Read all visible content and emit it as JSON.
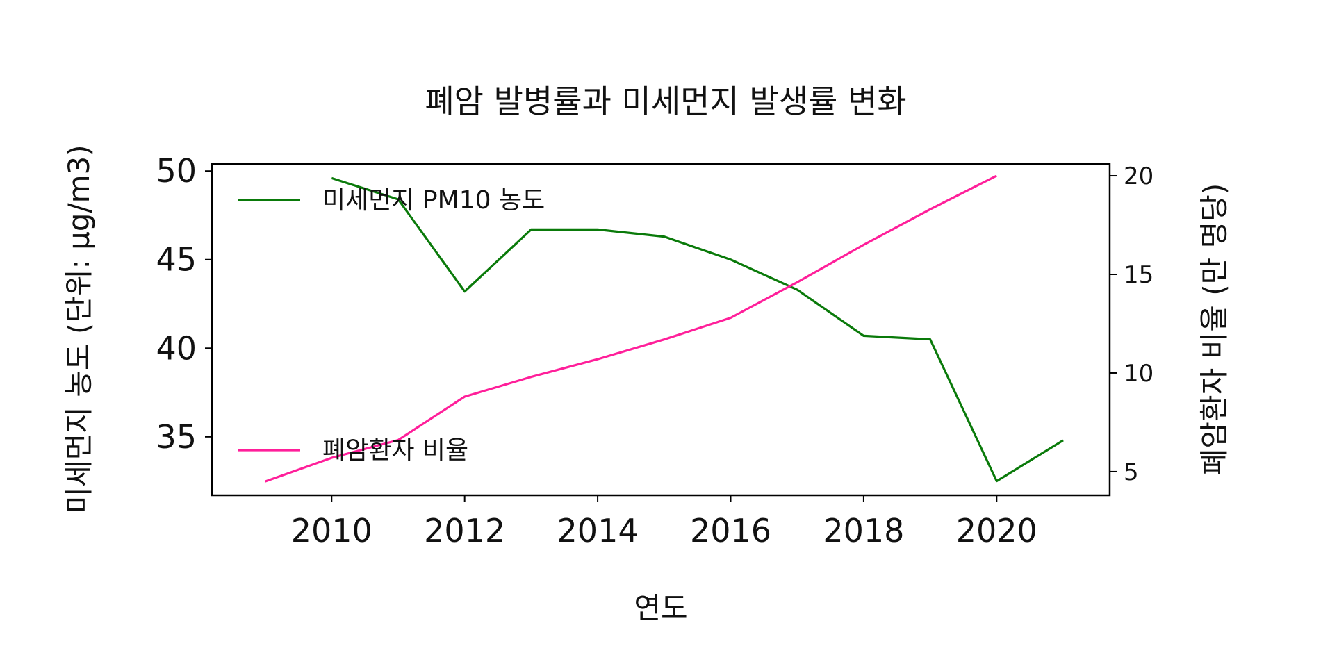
{
  "chart_data": {
    "type": "line",
    "title": "폐암 발병률과 미세먼지 발생률 변화",
    "xlabel": "연도",
    "ylabel_left": "미세먼지 농도 (단위: μg/m3)",
    "ylabel_right": "폐암환자 비율 (만 명당)",
    "x": [
      2009,
      2010,
      2011,
      2012,
      2013,
      2014,
      2015,
      2016,
      2017,
      2018,
      2019,
      2020,
      2021
    ],
    "xlim": [
      2008.2,
      2021.7
    ],
    "x_ticks": [
      2010,
      2012,
      2014,
      2016,
      2018,
      2020
    ],
    "y_left_lim": [
      31.7,
      50.4
    ],
    "y_left_ticks": [
      35,
      40,
      45,
      50
    ],
    "y_right_lim": [
      3.8,
      20.6
    ],
    "y_right_ticks": [
      5,
      10,
      15,
      20
    ],
    "grid": false,
    "series": [
      {
        "name": "미세먼지 PM10 농도",
        "axis": "left",
        "color": "#0a7a0a",
        "x": [
          2010,
          2011,
          2012,
          2013,
          2014,
          2015,
          2016,
          2017,
          2018,
          2019,
          2020,
          2021
        ],
        "values": [
          49.6,
          48.4,
          43.2,
          46.7,
          46.7,
          46.3,
          45.0,
          43.3,
          40.7,
          40.5,
          32.5,
          34.8
        ]
      },
      {
        "name": "폐암환자 비율",
        "axis": "right",
        "color": "#ff1f9a",
        "x": [
          2009,
          2010,
          2011,
          2012,
          2013,
          2014,
          2015,
          2016,
          2017,
          2018,
          2019,
          2020
        ],
        "values": [
          4.5,
          5.7,
          6.6,
          8.8,
          9.8,
          10.7,
          11.7,
          12.8,
          14.6,
          16.5,
          18.3,
          20.0
        ]
      }
    ],
    "legend": [
      {
        "series": 0,
        "placement": "upper-left"
      },
      {
        "series": 1,
        "placement": "lower-left"
      }
    ]
  }
}
